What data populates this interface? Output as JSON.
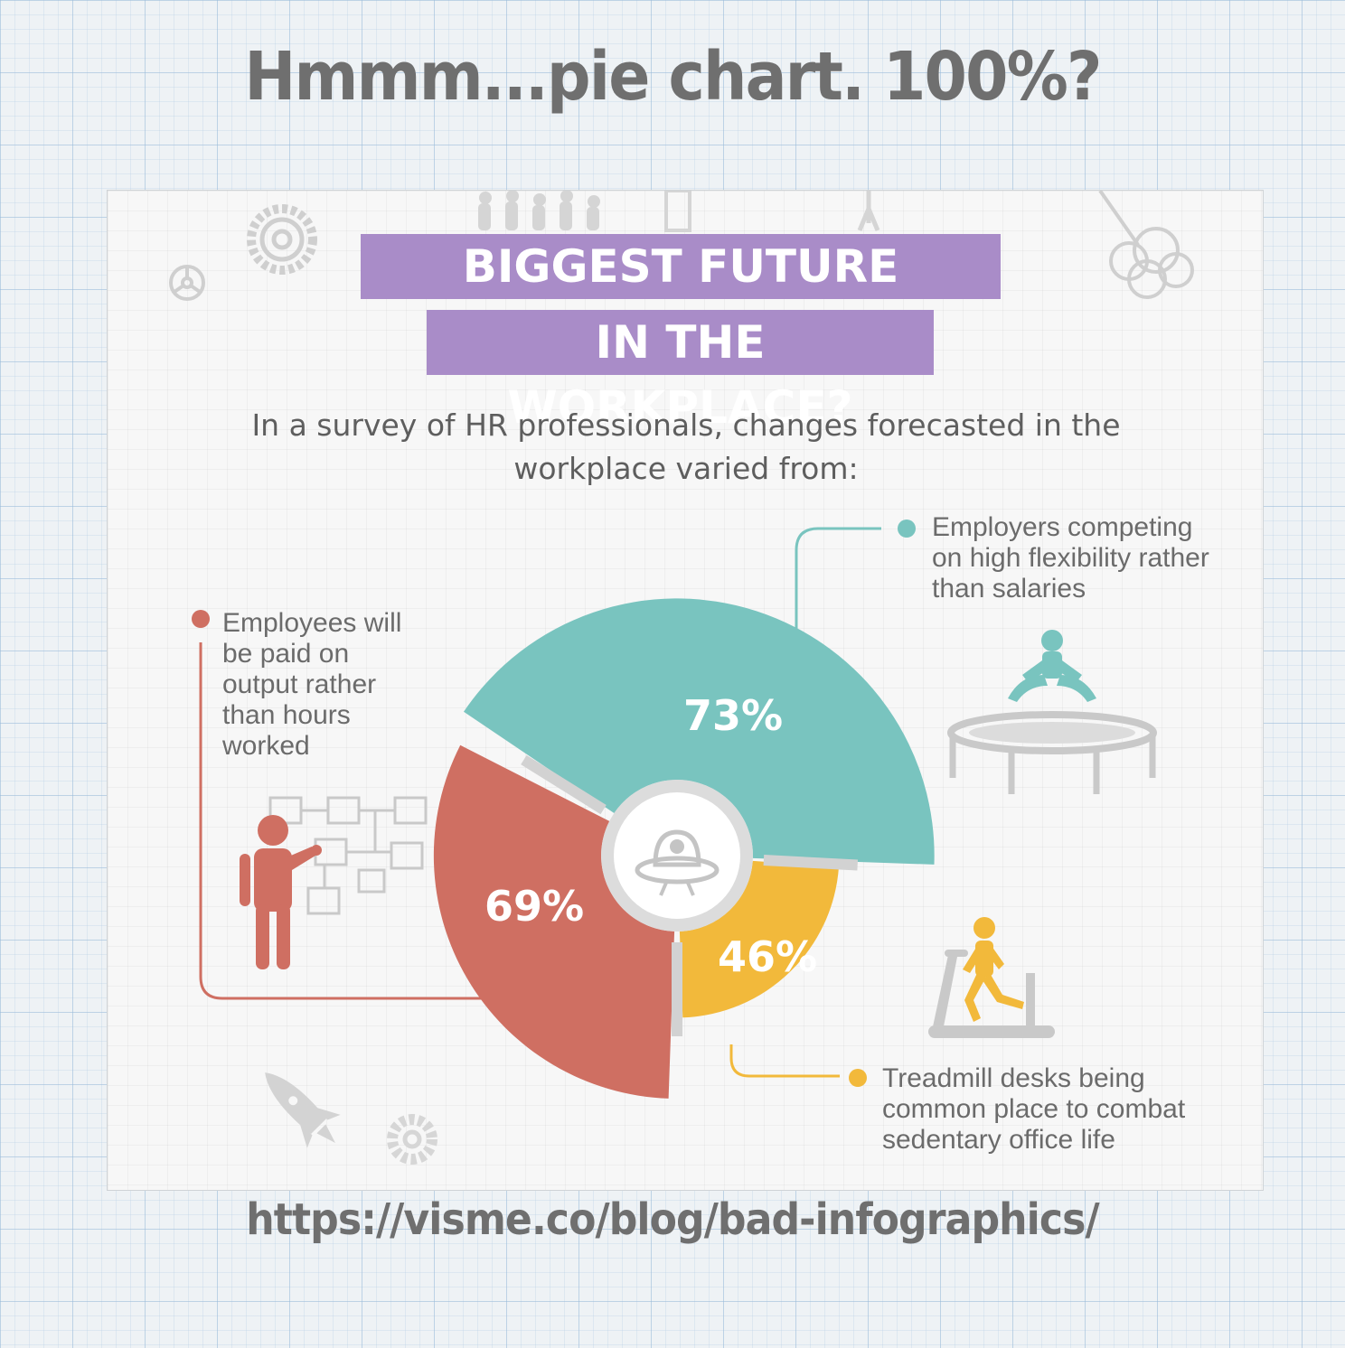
{
  "slide": {
    "title": "Hmmm...pie chart. 100%?",
    "source_url": "https://visme.co/blog/bad-infographics/"
  },
  "infographic": {
    "title_line1": "BIGGEST FUTURE CHANGES",
    "title_line2": "IN THE WORKPLACE?",
    "subtitle": "In a survey of HR professionals, changes forecasted in the workplace varied from:"
  },
  "colors": {
    "teal": "#79c4bf",
    "red": "#cf6f62",
    "yellow": "#f2b93b",
    "purple": "#a98cc8",
    "icon_gray": "#cfcfcf"
  },
  "icons": [
    "gear-icon",
    "steering-wheel-icon",
    "people-silhouette-icon",
    "cloud-icon",
    "rocket-icon",
    "trampoline-person-icon",
    "flowchart-person-icon",
    "treadmill-person-icon",
    "ufo-icon"
  ],
  "chart_data": {
    "type": "pie",
    "title": "BIGGEST FUTURE CHANGES IN THE WORKPLACE?",
    "slices": [
      {
        "label": "Employers competing on high flexibility rather than salaries",
        "value": 73,
        "value_label": "73%",
        "color": "#79c4bf"
      },
      {
        "label": "Treadmill desks being common place to combat sedentary office life",
        "value": 46,
        "value_label": "46%",
        "color": "#f2b93b"
      },
      {
        "label": "Employees will be paid on output rather than hours worked",
        "value": 69,
        "value_label": "69%",
        "color": "#cf6f62"
      }
    ]
  }
}
